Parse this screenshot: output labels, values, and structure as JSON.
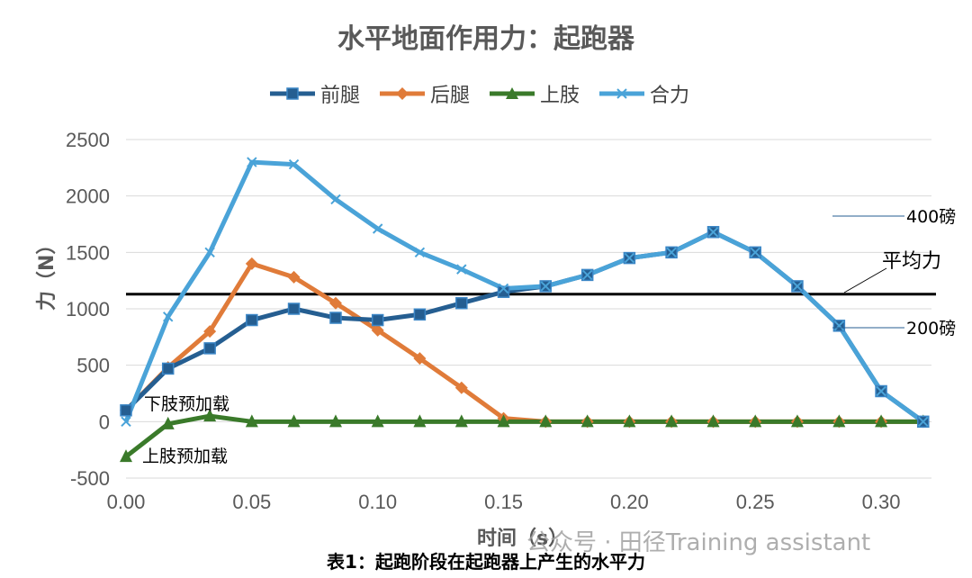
{
  "title": "水平地面作用力：起跑器",
  "caption": "表1：起跑阶段在起跑器上产生的水平力",
  "watermark": "公众号 · 田径Training assistant",
  "chart_data": {
    "type": "line",
    "xlabel": "时间（s）",
    "ylabel": "力（N）",
    "xlim": [
      0,
      0.32
    ],
    "ylim": [
      -500,
      2500
    ],
    "yticks": [
      -500,
      0,
      500,
      1000,
      1500,
      2000,
      2500
    ],
    "xticks": [
      0.0,
      0.05,
      0.1,
      0.15,
      0.2,
      0.25,
      0.3
    ],
    "xtick_labels": [
      "0.00",
      "0.05",
      "0.10",
      "0.15",
      "0.20",
      "0.25",
      "0.30"
    ],
    "grid": "horizontal",
    "legend_position": "top",
    "x": [
      0.0,
      0.0167,
      0.0333,
      0.05,
      0.0667,
      0.0833,
      0.1,
      0.1167,
      0.1333,
      0.15,
      0.1667,
      0.1833,
      0.2,
      0.2167,
      0.2333,
      0.25,
      0.2667,
      0.2833,
      0.3,
      0.3167
    ],
    "series": [
      {
        "name": "前腿",
        "color": "#255e91",
        "marker": "square",
        "values": [
          100,
          470,
          650,
          900,
          1000,
          920,
          900,
          950,
          1050,
          1150,
          1200,
          1300,
          1450,
          1500,
          1680,
          1500,
          1200,
          850,
          270,
          0
        ]
      },
      {
        "name": "后腿",
        "color": "#e07b39",
        "marker": "diamond",
        "values": [
          100,
          480,
          800,
          1400,
          1280,
          1050,
          810,
          560,
          300,
          30,
          0,
          0,
          0,
          0,
          0,
          0,
          0,
          0,
          0,
          0
        ]
      },
      {
        "name": "上肢",
        "color": "#3a7a2a",
        "marker": "triangle",
        "values": [
          -310,
          -20,
          50,
          0,
          0,
          0,
          0,
          0,
          0,
          0,
          0,
          0,
          0,
          0,
          0,
          0,
          0,
          0,
          0,
          0
        ]
      },
      {
        "name": "合力",
        "color": "#4aa3d8",
        "marker": "x",
        "values": [
          0,
          930,
          1500,
          2300,
          2280,
          1970,
          1710,
          1500,
          1350,
          1180,
          1200,
          1300,
          1450,
          1500,
          1680,
          1500,
          1200,
          850,
          270,
          0
        ]
      }
    ],
    "reference_line": {
      "label": "平均力",
      "value": 1130
    },
    "annotations": [
      {
        "text": "下肢预加载",
        "x": 0.0,
        "y": 100
      },
      {
        "text": "上肢预加载",
        "x": 0.0,
        "y": -310
      },
      {
        "text": "400磅",
        "y": 1800
      },
      {
        "text": "200磅",
        "y": 900
      }
    ]
  }
}
